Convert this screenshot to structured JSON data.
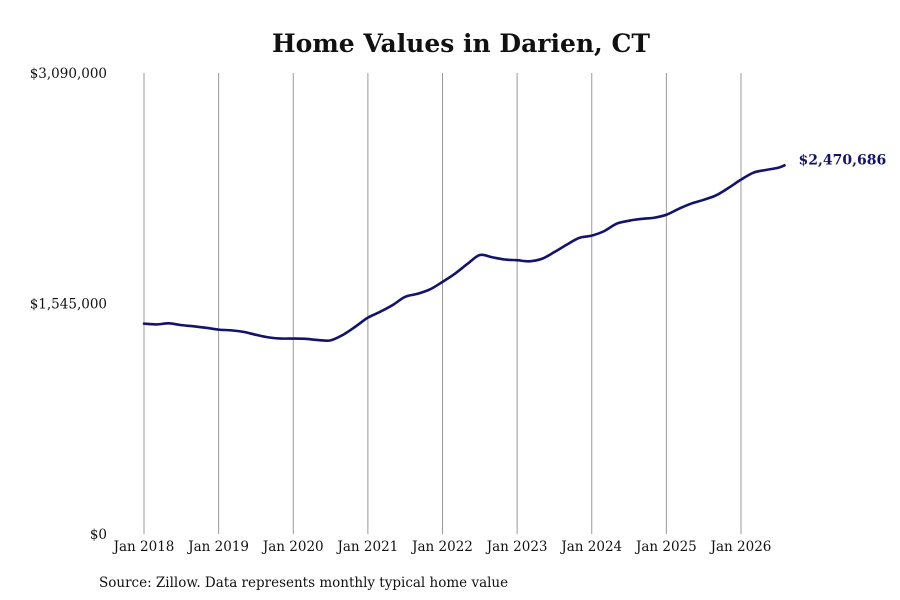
{
  "chart_data": {
    "type": "line",
    "title": "Home Values in Darien, CT",
    "xlabel": "",
    "ylabel": "",
    "ylim": [
      0,
      3090000
    ],
    "y_ticks": [
      "$3,090,000",
      "$1,545,000",
      "$0"
    ],
    "y_tick_values": [
      3090000,
      1545000,
      0
    ],
    "x_tick_labels": [
      "Jan 2018",
      "Jan 2019",
      "Jan 2020",
      "Jan 2021",
      "Jan 2022",
      "Jan 2023",
      "Jan 2024",
      "Jan 2025",
      "Jan 2026"
    ],
    "x_tick_values": [
      "2018-01",
      "2019-01",
      "2020-01",
      "2021-01",
      "2022-01",
      "2023-01",
      "2024-01",
      "2025-01",
      "2026-01"
    ],
    "grid": "vertical at x ticks",
    "end_label": "$2,470,686",
    "color": "#13136b",
    "series": [
      {
        "x": [
          "2018-01",
          "2018-03",
          "2018-05",
          "2018-07",
          "2018-09",
          "2018-11",
          "2019-01",
          "2019-03",
          "2019-05",
          "2019-07",
          "2019-09",
          "2019-11",
          "2020-01",
          "2020-03",
          "2020-05",
          "2020-07",
          "2020-09",
          "2020-11",
          "2021-01",
          "2021-03",
          "2021-05",
          "2021-07",
          "2021-09",
          "2021-11",
          "2022-01",
          "2022-03",
          "2022-05",
          "2022-07",
          "2022-09",
          "2022-11",
          "2023-01",
          "2023-03",
          "2023-05",
          "2023-07",
          "2023-09",
          "2023-11",
          "2024-01",
          "2024-03",
          "2024-05",
          "2024-07",
          "2024-09",
          "2024-11",
          "2025-01",
          "2025-03",
          "2025-05",
          "2025-07",
          "2025-09",
          "2025-11",
          "2026-01",
          "2026-03",
          "2026-05",
          "2026-07",
          "2026-08"
        ],
        "values": [
          1410000,
          1405000,
          1412000,
          1400000,
          1392000,
          1382000,
          1370000,
          1365000,
          1355000,
          1335000,
          1318000,
          1310000,
          1310000,
          1308000,
          1300000,
          1298000,
          1335000,
          1390000,
          1450000,
          1490000,
          1535000,
          1590000,
          1610000,
          1640000,
          1690000,
          1745000,
          1810000,
          1870000,
          1855000,
          1840000,
          1835000,
          1828000,
          1845000,
          1890000,
          1940000,
          1985000,
          2000000,
          2030000,
          2080000,
          2100000,
          2112000,
          2120000,
          2140000,
          2180000,
          2215000,
          2240000,
          2270000,
          2320000,
          2375000,
          2422000,
          2440000,
          2455000,
          2470686
        ]
      }
    ]
  },
  "source": "Source: Zillow. Data represents monthly typical home value"
}
